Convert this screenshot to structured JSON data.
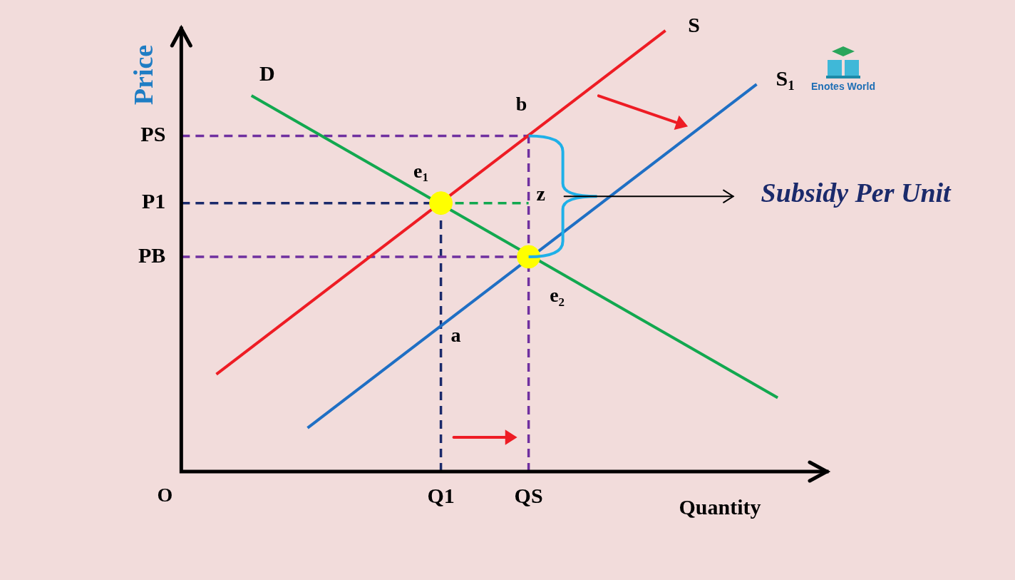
{
  "chart_data": {
    "type": "line",
    "x_label": "Quantity",
    "y_label": "Price",
    "origin_label": "O",
    "xlim": [
      0,
      92
    ],
    "ylim": [
      0,
      66
    ],
    "xticks": [
      {
        "value": 37,
        "label": "Q1"
      },
      {
        "value": 49.5,
        "label": "QS"
      }
    ],
    "yticks": [
      {
        "value": 50,
        "label": "PS"
      },
      {
        "value": 40,
        "label": "P1"
      },
      {
        "value": 32,
        "label": "PB"
      }
    ],
    "grid": false,
    "series": [
      {
        "name": "D",
        "color": "#12a84f",
        "x": [
          10,
          85
        ],
        "values": [
          56,
          11
        ]
      },
      {
        "name": "S",
        "color": "#ee1c24",
        "x": [
          5,
          69
        ],
        "values": [
          14.5,
          65.7
        ]
      },
      {
        "name": "S1",
        "color": "#1f6fc4",
        "x": [
          18,
          82
        ],
        "values": [
          6.5,
          57.7
        ]
      }
    ],
    "points": [
      {
        "label": "e1",
        "x": 37,
        "y": 40,
        "color": "#ffff00"
      },
      {
        "label": "e2",
        "x": 49.5,
        "y": 32,
        "color": "#ffff00"
      }
    ],
    "point_labels": [
      {
        "label": "b",
        "x": 49.5,
        "y": 50
      },
      {
        "label": "z",
        "x": 49.5,
        "y": 40
      },
      {
        "label": "a",
        "x": 37,
        "y": 21.7
      }
    ],
    "guides": [
      {
        "x": [
          0,
          49.5
        ],
        "values": [
          50,
          50
        ],
        "color": "#7030a0",
        "line_style": "dashed"
      },
      {
        "x": [
          0,
          37
        ],
        "values": [
          40,
          40
        ],
        "color": "#1b2a6b",
        "line_style": "dashed"
      },
      {
        "x": [
          37,
          49.5
        ],
        "values": [
          40,
          40
        ],
        "color": "#12a84f",
        "line_style": "dashed"
      },
      {
        "x": [
          0,
          49.5
        ],
        "values": [
          32,
          32
        ],
        "color": "#7030a0",
        "line_style": "dashed"
      },
      {
        "x": [
          37,
          37
        ],
        "values": [
          0,
          40
        ],
        "color": "#1b2a6b",
        "line_style": "dashed"
      },
      {
        "x": [
          49.5,
          49.5
        ],
        "values": [
          0,
          50
        ],
        "color": "#7030a0",
        "line_style": "dashed"
      }
    ],
    "annotation": {
      "label": "Subsidy Per Unit",
      "x": 49.5,
      "from": 50,
      "to": 32
    },
    "logo": "Enotes World"
  }
}
